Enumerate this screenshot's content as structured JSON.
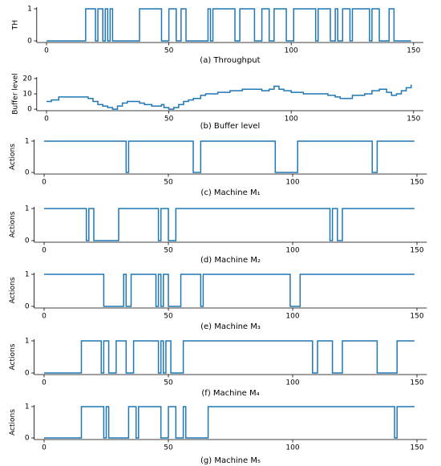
{
  "chart_data": [
    {
      "type": "step",
      "xlabel": "(a) Throughput",
      "ylabel": "TH",
      "color": "#1f77b4",
      "x": [
        0,
        16,
        20,
        21,
        23,
        24,
        25,
        26,
        27,
        38,
        47,
        50,
        53,
        55,
        57,
        66,
        67,
        68,
        77,
        79,
        85,
        88,
        91,
        93,
        98,
        101,
        110,
        111,
        116,
        118,
        119,
        121,
        124,
        125,
        132,
        133,
        136,
        140,
        142,
        149
      ],
      "values": [
        0,
        1,
        0,
        1,
        0,
        1,
        0,
        1,
        0,
        1,
        0,
        1,
        0,
        1,
        0,
        1,
        0,
        1,
        0,
        1,
        0,
        1,
        0,
        1,
        0,
        1,
        0,
        1,
        0,
        1,
        0,
        1,
        0,
        1,
        0,
        1,
        0,
        1,
        0,
        0
      ],
      "xlim": [
        -4,
        154
      ],
      "ylim": [
        -0.05,
        1.05
      ],
      "xticks": [
        0,
        50,
        100,
        150
      ],
      "yticks": [
        0,
        1
      ]
    },
    {
      "type": "step",
      "xlabel": "(b) Buffer level",
      "ylabel": "Buffer level",
      "color": "#1f77b4",
      "x": [
        0,
        2,
        5,
        15,
        17,
        19,
        21,
        23,
        25,
        27,
        29,
        31,
        33,
        38,
        40,
        43,
        45,
        47,
        48,
        50,
        52,
        54,
        56,
        58,
        60,
        63,
        65,
        70,
        75,
        80,
        88,
        91,
        93,
        95,
        97,
        100,
        105,
        110,
        115,
        118,
        120,
        125,
        130,
        133,
        136,
        139,
        141,
        143,
        145,
        147,
        149
      ],
      "values": [
        5,
        6,
        8,
        8,
        7,
        5,
        3,
        2,
        1,
        0,
        2,
        4,
        5,
        4,
        3,
        2,
        2,
        3,
        1,
        0,
        1,
        3,
        5,
        6,
        7,
        9,
        10,
        11,
        12,
        13,
        12,
        13,
        15,
        13,
        12,
        11,
        10,
        10,
        9,
        8,
        7,
        9,
        10,
        12,
        13,
        11,
        9,
        10,
        12,
        14,
        16
      ],
      "xlim": [
        -4,
        154
      ],
      "ylim": [
        -1,
        21
      ],
      "xticks": [
        0,
        50,
        100,
        150
      ],
      "yticks": [
        0,
        10,
        20
      ]
    },
    {
      "type": "step",
      "xlabel": "(c) Machine M₁",
      "ylabel": "Actions",
      "color": "#1f77b4",
      "x": [
        0,
        33,
        34,
        60,
        63,
        93,
        102,
        132,
        134,
        149
      ],
      "values": [
        1,
        0,
        1,
        0,
        1,
        0,
        1,
        0,
        1,
        1
      ],
      "xlim": [
        -4,
        154
      ],
      "ylim": [
        -0.05,
        1.05
      ],
      "xticks": [
        0,
        50,
        100,
        150
      ],
      "yticks": [
        0,
        1
      ]
    },
    {
      "type": "step",
      "xlabel": "(d) Machine M₂",
      "ylabel": "Actions",
      "color": "#1f77b4",
      "x": [
        0,
        17,
        18,
        20,
        30,
        46,
        47,
        50,
        53,
        115,
        116,
        118,
        120,
        149
      ],
      "values": [
        1,
        0,
        1,
        0,
        1,
        0,
        1,
        0,
        1,
        0,
        1,
        0,
        1,
        1
      ],
      "xlim": [
        -4,
        154
      ],
      "ylim": [
        -0.05,
        1.05
      ],
      "xticks": [
        0,
        50,
        100,
        150
      ],
      "yticks": [
        0,
        1
      ]
    },
    {
      "type": "step",
      "xlabel": "(e) Machine M₃",
      "ylabel": "Actions",
      "color": "#1f77b4",
      "x": [
        0,
        24,
        32,
        33,
        35,
        45,
        46,
        47,
        48,
        50,
        55,
        63,
        64,
        99,
        103,
        149
      ],
      "values": [
        1,
        0,
        1,
        0,
        1,
        0,
        1,
        0,
        1,
        0,
        1,
        0,
        1,
        0,
        1,
        1
      ],
      "xlim": [
        -4,
        154
      ],
      "ylim": [
        -0.05,
        1.05
      ],
      "xticks": [
        0,
        50,
        100,
        150
      ],
      "yticks": [
        0,
        1
      ]
    },
    {
      "type": "step",
      "xlabel": "(f) Machine M₄",
      "ylabel": "Actions",
      "color": "#1f77b4",
      "x": [
        0,
        15,
        23,
        24,
        26,
        29,
        33,
        36,
        46,
        47,
        48,
        49,
        51,
        56,
        108,
        110,
        116,
        120,
        134,
        142,
        149
      ],
      "values": [
        0,
        1,
        0,
        1,
        0,
        1,
        0,
        1,
        0,
        1,
        0,
        1,
        0,
        1,
        0,
        1,
        0,
        1,
        0,
        1,
        1
      ],
      "xlim": [
        -4,
        154
      ],
      "ylim": [
        -0.05,
        1.05
      ],
      "xticks": [
        0,
        50,
        100,
        150
      ],
      "yticks": [
        0,
        1
      ]
    },
    {
      "type": "step",
      "xlabel": "(g) Machine M₅",
      "ylabel": "Actions",
      "color": "#1f77b4",
      "x": [
        0,
        15,
        24,
        25,
        26,
        34,
        37,
        38,
        47,
        50,
        53,
        56,
        57,
        66,
        141,
        142,
        149
      ],
      "values": [
        0,
        1,
        0,
        1,
        0,
        1,
        0,
        1,
        0,
        1,
        0,
        1,
        0,
        1,
        0,
        1,
        1
      ],
      "xlim": [
        -4,
        154
      ],
      "ylim": [
        -0.05,
        1.05
      ],
      "xticks": [
        0,
        50,
        100,
        150
      ],
      "yticks": [
        0,
        1
      ]
    }
  ]
}
